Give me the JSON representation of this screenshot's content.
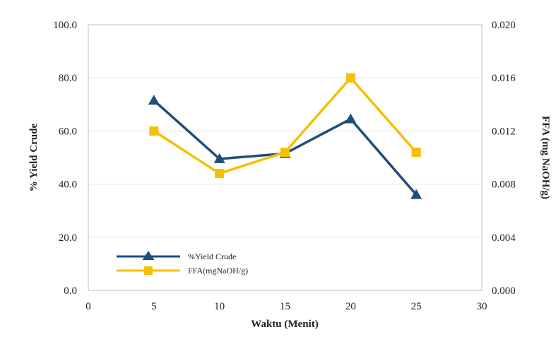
{
  "chart_data": {
    "type": "line",
    "xlabel": "Waktu (Menit)",
    "ylabel": "% Yield Crude",
    "y2label": "FFA (mg NaOH/g)",
    "xlim": [
      0,
      30
    ],
    "ylim": [
      0,
      100
    ],
    "y2lim": [
      0,
      0.02
    ],
    "x_ticks": [
      "0",
      "5",
      "10",
      "15",
      "20",
      "25",
      "30"
    ],
    "y_ticks": [
      "0.0",
      "20.0",
      "40.0",
      "60.0",
      "80.0",
      "100.0"
    ],
    "y2_ticks": [
      "0.000",
      "0.004",
      "0.008",
      "0.012",
      "0.016",
      "0.020"
    ],
    "grid": true,
    "legend_position": "bottom-left",
    "series": [
      {
        "name": "%Yield Crude",
        "axis": "left",
        "color": "#1f4e79",
        "marker": "triangle",
        "x": [
          5,
          10,
          15,
          20,
          25
        ],
        "y": [
          71.5,
          49.5,
          51.5,
          64.5,
          36.0
        ]
      },
      {
        "name": "FFA(mgNaOH/g)",
        "axis": "right",
        "color": "#f5c000",
        "marker": "square",
        "x": [
          5,
          10,
          15,
          20,
          25
        ],
        "y": [
          0.012,
          0.0088,
          0.0104,
          0.016,
          0.0104
        ]
      }
    ]
  }
}
